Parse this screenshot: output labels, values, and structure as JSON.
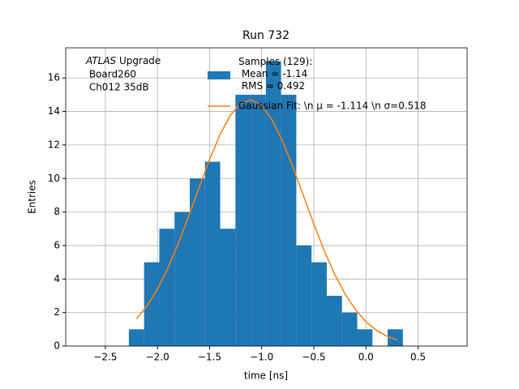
{
  "chart_data": {
    "type": "histogram",
    "title": "Run 732",
    "xlabel": "time [ns]",
    "ylabel": "Entries",
    "annotation": {
      "italic": "ATLAS",
      "rest": " Upgrade",
      "lines": [
        " Board260",
        " Ch012 35dB"
      ]
    },
    "series": [
      {
        "type": "histogram",
        "name": "Samples (129):\n Mean = -1.14\n RMS = 0.492",
        "color": "#1f77b4",
        "bins": [
          -2.274,
          -2.128,
          -1.982,
          -1.836,
          -1.69,
          -1.544,
          -1.398,
          -1.252,
          -1.106,
          -0.96,
          -0.814,
          -0.668,
          -0.522,
          -0.376,
          -0.23,
          -0.084,
          0.062,
          0.208,
          0.354
        ],
        "values": [
          1,
          5,
          7,
          8,
          10,
          11,
          7,
          15,
          15,
          17,
          15,
          6,
          5,
          3,
          2,
          1,
          0,
          1
        ]
      },
      {
        "type": "line",
        "name": "Gaussian Fit: \\n μ = -1.114 \\n σ=0.518",
        "color": "#ff7f0e",
        "x": [
          -2.2,
          -2.1,
          -2.0,
          -1.9,
          -1.8,
          -1.7,
          -1.6,
          -1.5,
          -1.4,
          -1.3,
          -1.2,
          -1.1,
          -1.0,
          -0.9,
          -0.8,
          -0.7,
          -0.6,
          -0.5,
          -0.4,
          -0.3,
          -0.2,
          -0.1,
          0.0,
          0.1,
          0.2,
          0.3
        ],
        "values": [
          1.63,
          2.4,
          3.4,
          4.65,
          6.12,
          7.75,
          9.47,
          11.14,
          12.62,
          13.78,
          14.5,
          14.69,
          14.35,
          13.5,
          12.23,
          10.68,
          8.98,
          7.28,
          5.69,
          4.28,
          3.1,
          2.16,
          1.45,
          0.94,
          0.59,
          0.35
        ]
      }
    ],
    "xlim": [
      -2.88,
      0.97
    ],
    "ylim": [
      0,
      17.8
    ],
    "xticks": [
      {
        "value": -2.5,
        "label": "−2.5"
      },
      {
        "value": -2.0,
        "label": "−2.0"
      },
      {
        "value": -1.5,
        "label": "−1.5"
      },
      {
        "value": -1.0,
        "label": "−1.0"
      },
      {
        "value": -0.5,
        "label": "−0.5"
      },
      {
        "value": 0.0,
        "label": "0.0"
      },
      {
        "value": 0.5,
        "label": "0.5"
      }
    ],
    "yticks": [
      0,
      2,
      4,
      6,
      8,
      10,
      12,
      14,
      16
    ],
    "grid": true,
    "legend": "upper center"
  }
}
